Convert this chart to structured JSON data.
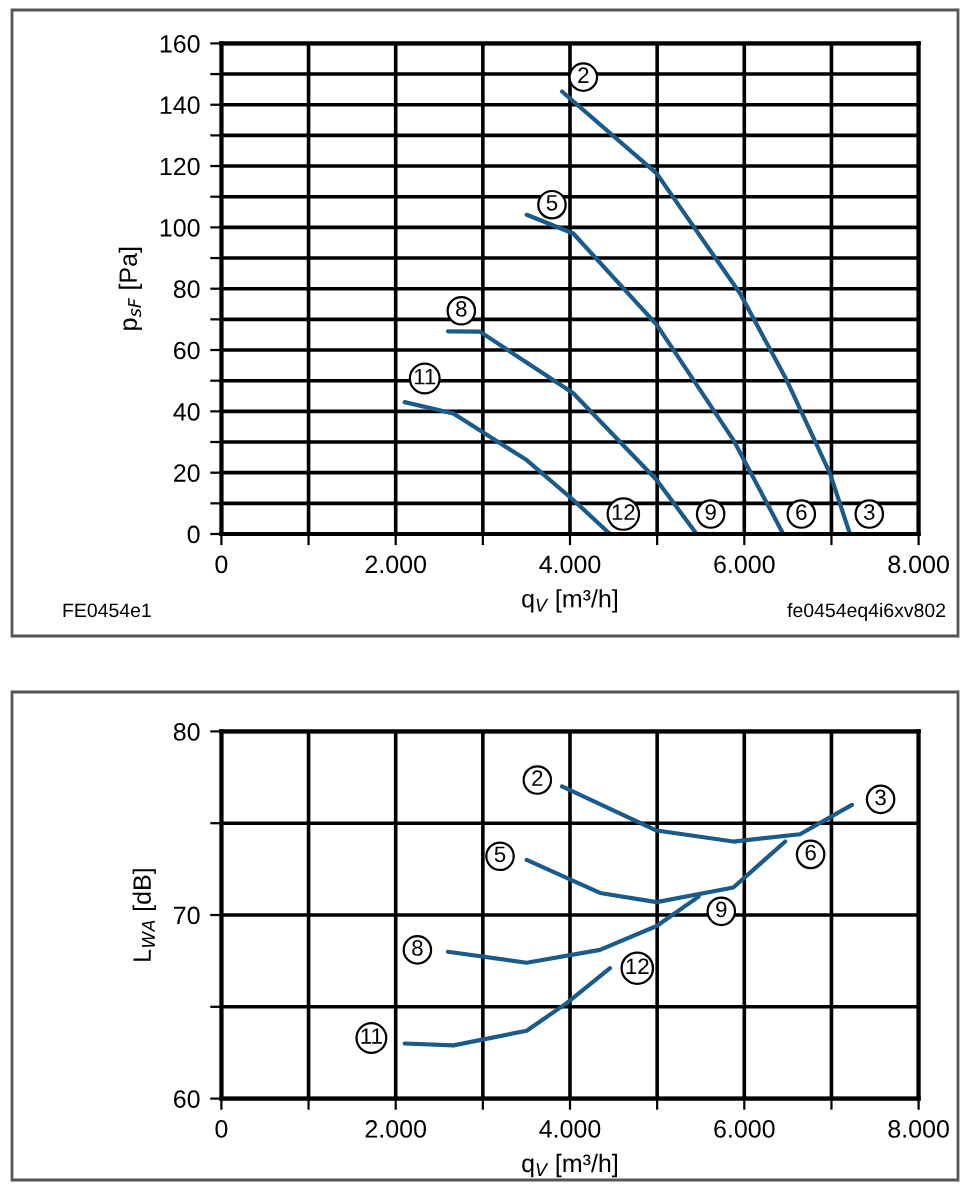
{
  "chart_data": [
    {
      "type": "line",
      "xlabel": "q$_{V}$ [m³/h]",
      "ylabel": "p$_{sF}$ [Pa]",
      "xlim": [
        0,
        8000
      ],
      "xticks": [
        0,
        {
          "value": 1000,
          "label": null
        },
        {
          "value": 2000,
          "label": "2.000"
        },
        {
          "value": 3000,
          "label": null
        },
        {
          "value": 4000,
          "label": "4.000"
        },
        {
          "value": 5000,
          "label": null
        },
        {
          "value": 6000,
          "label": "6.000"
        },
        {
          "value": 7000,
          "label": null
        },
        {
          "value": 8000,
          "label": "8.000"
        }
      ],
      "ylim": [
        0,
        160
      ],
      "yticks": [
        0,
        {
          "value": 10,
          "label": null
        },
        20,
        {
          "value": 30,
          "label": null
        },
        40,
        {
          "value": 50,
          "label": null
        },
        60,
        {
          "value": 70,
          "label": null
        },
        80,
        {
          "value": 90,
          "label": null
        },
        100,
        {
          "value": 110,
          "label": null
        },
        120,
        {
          "value": 130,
          "label": null
        },
        140,
        {
          "value": 150,
          "label": null
        },
        160
      ],
      "grid": true,
      "legend": false,
      "marker": "none",
      "line_style": "solid",
      "series": [
        {
          "color": "#1a5b8a",
          "x": [
            3908,
            4994,
            5950,
            6486,
            6983,
            7212
          ],
          "values": [
            144.3,
            117.6,
            78.5,
            50.2,
            19.8,
            0
          ]
        },
        {
          "color": "#1a5b8a",
          "x": [
            3503,
            4038,
            4994,
            5874,
            6447
          ],
          "values": [
            104.1,
            98,
            68.3,
            30.7,
            0
          ]
        },
        {
          "color": "#1a5b8a",
          "x": [
            2600,
            2967,
            4038,
            4994,
            5453
          ],
          "values": [
            66.1,
            66,
            45.9,
            17.6,
            0
          ]
        },
        {
          "color": "#1a5b8a",
          "x": [
            2103,
            2662,
            3503,
            4038,
            4459
          ],
          "values": [
            43,
            39.3,
            24.1,
            11.1,
            0
          ]
        }
      ],
      "annotations": [
        {
          "text": "2",
          "x": 4153,
          "y": 149
        },
        {
          "text": "5",
          "x": 3793,
          "y": 107.4
        },
        {
          "text": "8",
          "x": 2753,
          "y": 72.8
        },
        {
          "text": "11",
          "x": 2333,
          "y": 50.7
        },
        {
          "text": "12",
          "x": 4612,
          "y": 6.5
        },
        {
          "text": "9",
          "x": 5614,
          "y": 6.5
        },
        {
          "text": "6",
          "x": 6654,
          "y": 6.5
        },
        {
          "text": "3",
          "x": 7434,
          "y": 6.5
        },
        "FE0454e1",
        "fe0454eq4i6xv802"
      ]
    },
    {
      "type": "line",
      "xlabel": "q$_{V}$ [m³/h]",
      "ylabel": "L$_{WA}$ [dB]",
      "xlim": [
        0,
        8000
      ],
      "xticks": [
        0,
        {
          "value": 1000,
          "label": null
        },
        {
          "value": 2000,
          "label": "2.000"
        },
        {
          "value": 3000,
          "label": null
        },
        {
          "value": 4000,
          "label": "4.000"
        },
        {
          "value": 5000,
          "label": null
        },
        {
          "value": 6000,
          "label": "6.000"
        },
        {
          "value": 7000,
          "label": null
        },
        {
          "value": 8000,
          "label": "8.000"
        }
      ],
      "ylim": [
        60,
        80
      ],
      "yticks": [
        60,
        {
          "value": 65,
          "label": null
        },
        70,
        {
          "value": 75,
          "label": null
        },
        80
      ],
      "grid": true,
      "legend": false,
      "marker": "none",
      "line_style": "solid",
      "series": [
        {
          "color": "#1a5b8a",
          "x": [
            3908,
            4994,
            5874,
            6639,
            7235
          ],
          "values": [
            77,
            74.6,
            74.0,
            74.4,
            76.0
          ]
        },
        {
          "color": "#1a5b8a",
          "x": [
            3503,
            4344,
            4994,
            5874,
            6470
          ],
          "values": [
            73.0,
            71.2,
            70.7,
            71.5,
            74.0
          ]
        },
        {
          "color": "#1a5b8a",
          "x": [
            2600,
            3503,
            4344,
            4994,
            5476
          ],
          "values": [
            68.0,
            67.4,
            68.1,
            69.4,
            71.0
          ]
        },
        {
          "color": "#1a5b8a",
          "x": [
            2103,
            2662,
            3503,
            3962,
            4459
          ],
          "values": [
            63.0,
            62.9,
            63.7,
            65.2,
            67.1
          ]
        }
      ],
      "annotations": [
        {
          "text": "2",
          "x": 3625,
          "y": 77.35
        },
        {
          "text": "3",
          "x": 7564,
          "y": 76.3
        },
        {
          "text": "5",
          "x": 3197,
          "y": 73.2
        },
        {
          "text": "6",
          "x": 6761,
          "y": 73.3
        },
        {
          "text": "9",
          "x": 5736,
          "y": 70.2
        },
        {
          "text": "8",
          "x": 2249,
          "y": 68.1
        },
        {
          "text": "12",
          "x": 4772,
          "y": 67.1
        },
        {
          "text": "11",
          "x": 1721,
          "y": 63.3
        }
      ]
    }
  ]
}
